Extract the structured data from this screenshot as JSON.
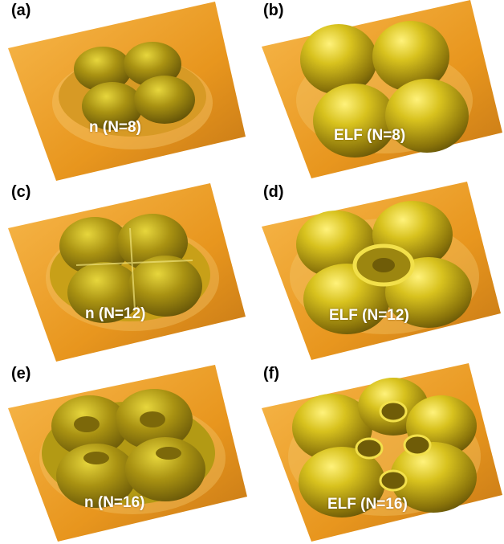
{
  "panels": [
    {
      "id": "a",
      "letter": "(a)",
      "caption": "n (N=8)",
      "quantity": "n",
      "electrons": 8
    },
    {
      "id": "b",
      "letter": "(b)",
      "caption": "ELF (N=8)",
      "quantity": "ELF",
      "electrons": 8
    },
    {
      "id": "c",
      "letter": "(c)",
      "caption": "n (N=12)",
      "quantity": "n",
      "electrons": 12
    },
    {
      "id": "d",
      "letter": "(d)",
      "caption": "ELF (N=12)",
      "quantity": "ELF",
      "electrons": 12
    },
    {
      "id": "e",
      "letter": "(e)",
      "caption": "n (N=16)",
      "quantity": "n",
      "electrons": 16
    },
    {
      "id": "f",
      "letter": "(f)",
      "caption": "ELF (N=16)",
      "quantity": "ELF",
      "electrons": 16
    }
  ],
  "colors": {
    "plane": "#e8961e",
    "plane_light": "#f6b548",
    "plane_dark": "#c07413",
    "surface": "#b9a010",
    "surface_light": "#f2e04a",
    "surface_dark": "#6f5c08"
  }
}
